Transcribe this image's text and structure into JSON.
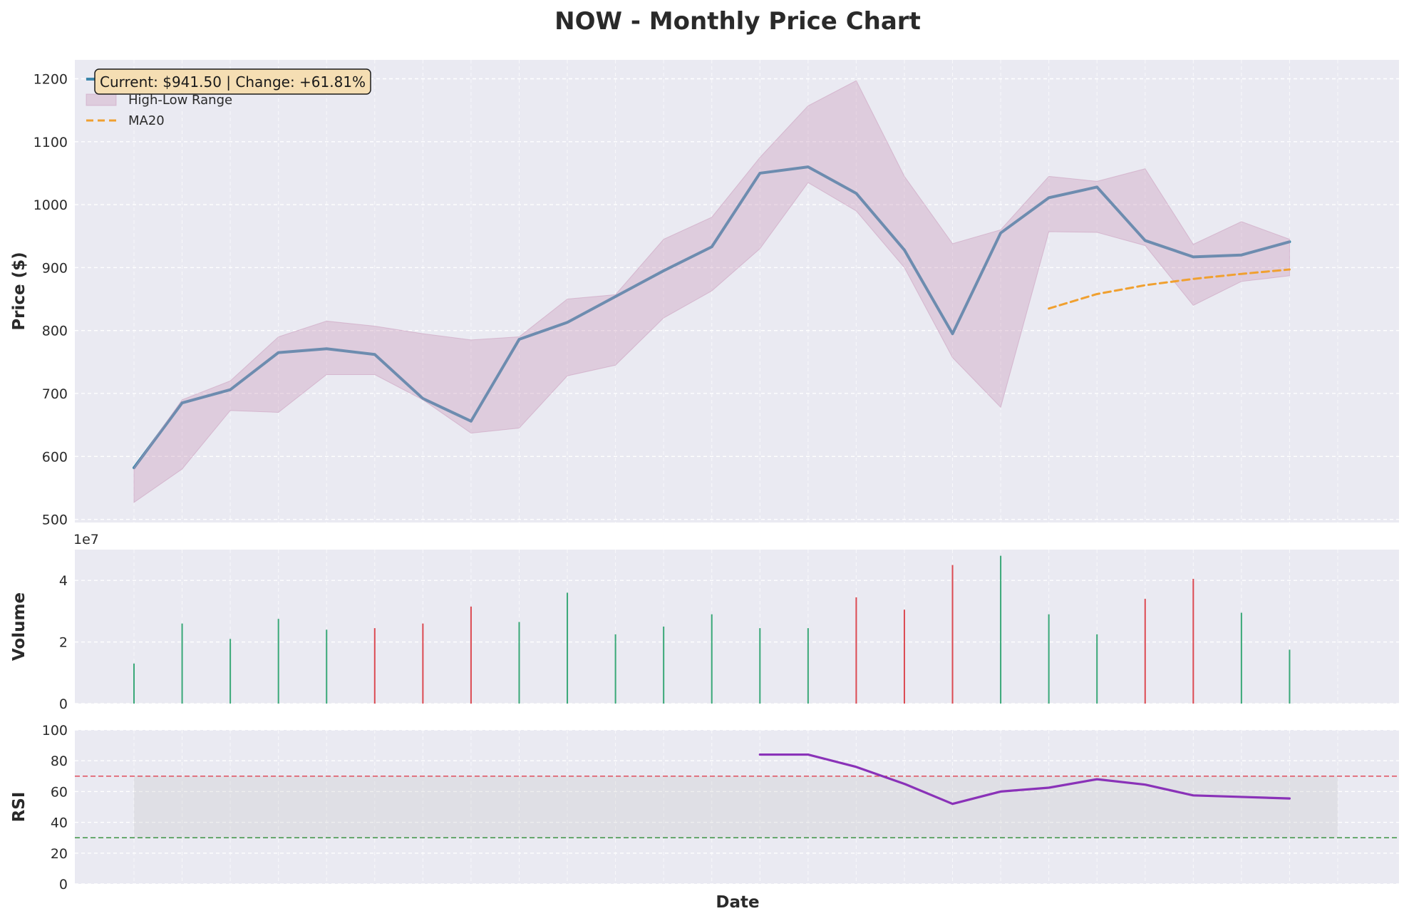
{
  "chart_data": {
    "type": "line",
    "title": "NOW - Monthly Price Chart",
    "xlabel": "Date",
    "annotation": "Current: $941.50 | Change: +61.81%",
    "x": [
      0,
      1,
      2,
      3,
      4,
      5,
      6,
      7,
      8,
      9,
      10,
      11,
      12,
      13,
      14,
      15,
      16,
      17,
      18,
      19,
      20,
      21,
      22,
      23,
      24,
      25
    ],
    "colors": {
      "close": "#3d87ab",
      "range": "#c896b8",
      "ma": "#f0a030",
      "up": "#3aa878",
      "down": "#dc4a52",
      "rsi": "#8a32b8",
      "overbought": "#e05a68",
      "oversold": "#4a9a50",
      "panel_bg": "#eaeaf2",
      "annotation_bg": "#f5deb3"
    },
    "panels": [
      {
        "id": "price",
        "ylabel": "Price ($)",
        "ylim": [
          495,
          1230
        ],
        "yticks": [
          500,
          600,
          700,
          800,
          900,
          1000,
          1100,
          1200
        ],
        "legend": {
          "position": "top-left",
          "entries": [
            "Close Price",
            "High-Low Range",
            "MA20"
          ]
        },
        "series": [
          {
            "name": "Close Price",
            "kind": "line",
            "values": [
              582,
              685,
              706,
              765,
              771,
              762,
              692,
              656,
              786,
              813,
              854,
              895,
              933,
              1050,
              1060,
              1018,
              928,
              795,
              955,
              1011,
              1028,
              943,
              917,
              920,
              941,
              null
            ]
          },
          {
            "name": "High-Low Range",
            "kind": "band",
            "high": [
              582,
              690,
              720,
              790,
              815,
              807,
              795,
              785,
              790,
              850,
              857,
              945,
              980,
              1075,
              1157,
              1197,
              1045,
              938,
              960,
              1045,
              1037,
              1057,
              937,
              973,
              945,
              null
            ],
            "low": [
              527,
              580,
              673,
              670,
              730,
              730,
              690,
              637,
              645,
              728,
              745,
              820,
              863,
              930,
              1035,
              990,
              900,
              757,
              678,
              957,
              956,
              935,
              840,
              878,
              887,
              null
            ]
          },
          {
            "name": "MA20",
            "kind": "dashed-line",
            "values": [
              null,
              null,
              null,
              null,
              null,
              null,
              null,
              null,
              null,
              null,
              null,
              null,
              null,
              null,
              null,
              null,
              null,
              null,
              null,
              835,
              858,
              872,
              882,
              890,
              897,
              null
            ]
          }
        ]
      },
      {
        "id": "volume",
        "ylabel": "Volume",
        "scale_label": "1e7",
        "ylim": [
          0,
          5
        ],
        "yticks": [
          0,
          2,
          4
        ],
        "series": [
          {
            "name": "Volume",
            "kind": "bar",
            "values": [
              1.3,
              2.6,
              2.1,
              2.75,
              2.4,
              2.45,
              2.6,
              3.15,
              2.65,
              3.6,
              2.25,
              2.5,
              2.9,
              2.45,
              2.45,
              3.45,
              3.05,
              4.5,
              4.8,
              2.9,
              2.25,
              3.4,
              4.05,
              2.95,
              1.75,
              null
            ],
            "direction": [
              "up",
              "up",
              "up",
              "up",
              "up",
              "down",
              "down",
              "down",
              "up",
              "up",
              "up",
              "up",
              "up",
              "up",
              "up",
              "down",
              "down",
              "down",
              "up",
              "up",
              "up",
              "down",
              "down",
              "up",
              "up",
              null
            ]
          }
        ]
      },
      {
        "id": "rsi",
        "ylabel": "RSI",
        "ylim": [
          0,
          100
        ],
        "yticks": [
          0,
          20,
          40,
          60,
          80,
          100
        ],
        "overbought": 70,
        "oversold": 30,
        "series": [
          {
            "name": "RSI",
            "kind": "line",
            "values": [
              null,
              null,
              null,
              null,
              null,
              null,
              null,
              null,
              null,
              null,
              null,
              null,
              null,
              84,
              84,
              76,
              65,
              52,
              60,
              62.5,
              68,
              64.5,
              57.5,
              56.5,
              55.5,
              null
            ]
          }
        ]
      }
    ]
  }
}
